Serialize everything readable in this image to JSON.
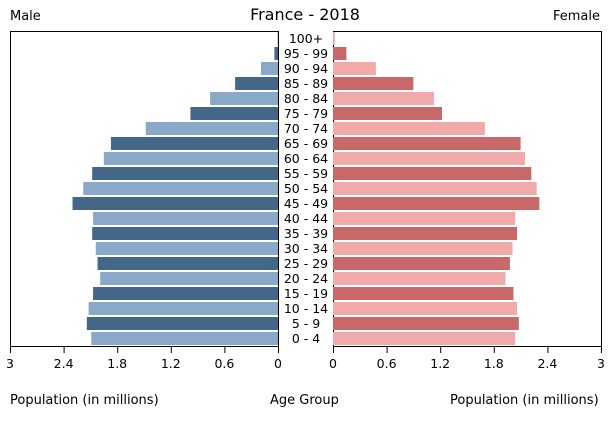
{
  "chart_data": {
    "type": "bar",
    "orientation": "horizontal",
    "variant": "population-pyramid",
    "title": "France - 2018",
    "left_label": "Male",
    "right_label": "Female",
    "xlabel_left": "Population (in millions)",
    "xlabel_center": "Age Group",
    "xlabel_right": "Population (in millions)",
    "xlim": [
      0,
      3
    ],
    "xticks": [
      "3",
      "2.4",
      "1.8",
      "1.2",
      "0.6",
      "0",
      "0",
      "0.6",
      "1.2",
      "1.8",
      "2.4",
      "3"
    ],
    "categories": [
      "100+",
      "95 - 99",
      "90 - 94",
      "85 - 89",
      "80 - 84",
      "75 - 79",
      "70 - 74",
      "65 - 69",
      "60 - 64",
      "55 - 59",
      "50 - 54",
      "45 - 49",
      "40 - 44",
      "35 - 39",
      "30 - 34",
      "25 - 29",
      "20 - 24",
      "15 - 19",
      "10 - 14",
      "5 - 9",
      "0 - 4"
    ],
    "series": [
      {
        "name": "Male",
        "values": [
          0.005,
          0.04,
          0.19,
          0.48,
          0.76,
          0.98,
          1.48,
          1.87,
          1.95,
          2.08,
          2.18,
          2.3,
          2.07,
          2.08,
          2.04,
          2.02,
          1.99,
          2.07,
          2.12,
          2.14,
          2.09
        ]
      },
      {
        "name": "Female",
        "values": [
          0.02,
          0.15,
          0.48,
          0.9,
          1.13,
          1.22,
          1.7,
          2.1,
          2.15,
          2.22,
          2.28,
          2.31,
          2.04,
          2.06,
          2.01,
          1.98,
          1.93,
          2.02,
          2.06,
          2.08,
          2.04
        ]
      }
    ],
    "colors": {
      "male_dark": "#456787",
      "male_light": "#8aa8c8",
      "female_dark": "#c96868",
      "female_light": "#f0aaaa",
      "axis": "#000000"
    }
  }
}
